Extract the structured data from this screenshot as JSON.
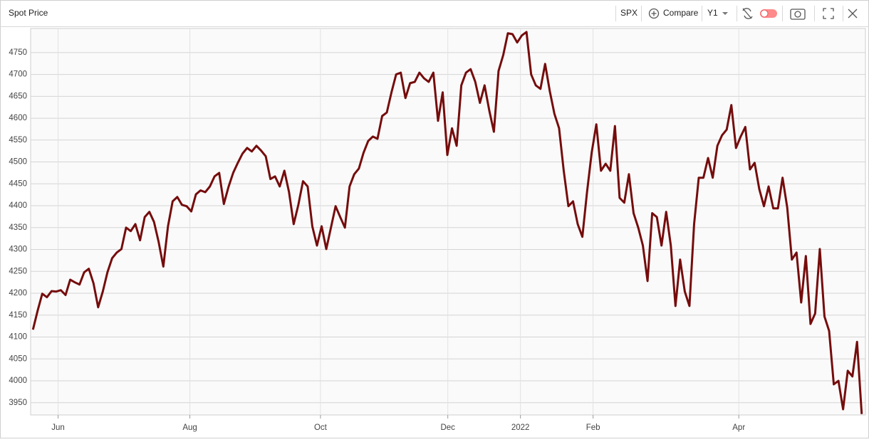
{
  "header": {
    "title": "Spot Price",
    "ticker": "SPX",
    "compare": "Compare",
    "period": "Y1"
  },
  "chart_data": {
    "type": "line",
    "color": "#750c0c",
    "values": [
      4117,
      4160,
      4199,
      4191,
      4205,
      4204,
      4207,
      4196,
      4231,
      4225,
      4220,
      4248,
      4256,
      4223,
      4168,
      4204,
      4248,
      4280,
      4293,
      4301,
      4350,
      4342,
      4358,
      4321,
      4374,
      4386,
      4363,
      4317,
      4261,
      4353,
      4410,
      4420,
      4402,
      4399,
      4387,
      4426,
      4435,
      4431,
      4444,
      4467,
      4475,
      4404,
      4443,
      4475,
      4498,
      4519,
      4532,
      4524,
      4537,
      4526,
      4513,
      4461,
      4467,
      4444,
      4480,
      4431,
      4358,
      4402,
      4456,
      4444,
      4353,
      4309,
      4353,
      4301,
      4350,
      4399,
      4374,
      4350,
      4444,
      4472,
      4485,
      4521,
      4548,
      4558,
      4553,
      4605,
      4613,
      4659,
      4700,
      4704,
      4646,
      4680,
      4683,
      4704,
      4691,
      4683,
      4704,
      4594,
      4659,
      4516,
      4577,
      4537,
      4675,
      4704,
      4712,
      4683,
      4635,
      4675,
      4618,
      4569,
      4708,
      4744,
      4794,
      4792,
      4773,
      4789,
      4797,
      4700,
      4675,
      4667,
      4724,
      4662,
      4610,
      4577,
      4480,
      4399,
      4410,
      4358,
      4329,
      4431,
      4521,
      4586,
      4480,
      4496,
      4480,
      4582,
      4418,
      4407,
      4472,
      4383,
      4350,
      4309,
      4228,
      4383,
      4374,
      4309,
      4386,
      4309,
      4171,
      4277,
      4204,
      4171,
      4358,
      4464,
      4464,
      4509,
      4464,
      4537,
      4561,
      4574,
      4630,
      4532,
      4558,
      4580,
      4483,
      4498,
      4438,
      4399,
      4444,
      4394,
      4394,
      4464,
      4396,
      4277,
      4293,
      4179,
      4285,
      4130,
      4154,
      4301,
      4147,
      4114,
      3992,
      4000,
      3935,
      4023,
      4010,
      4089,
      3924
    ],
    "xlim": [
      -0.5,
      178.8
    ],
    "xticks": [
      {
        "value": 5.4,
        "label": "Jun"
      },
      {
        "value": 33.7,
        "label": "Aug"
      },
      {
        "value": 61.75,
        "label": "Oct"
      },
      {
        "value": 89.1,
        "label": "Dec"
      },
      {
        "value": 104.7,
        "label": "2022"
      },
      {
        "value": 120.3,
        "label": "Feb"
      },
      {
        "value": 151.6,
        "label": "Apr"
      }
    ],
    "ylim": [
      3922,
      4805
    ],
    "yticks": [
      3950,
      4000,
      4050,
      4100,
      4150,
      4200,
      4250,
      4300,
      4350,
      4400,
      4450,
      4500,
      4550,
      4600,
      4650,
      4700,
      4750
    ],
    "grid": true
  }
}
